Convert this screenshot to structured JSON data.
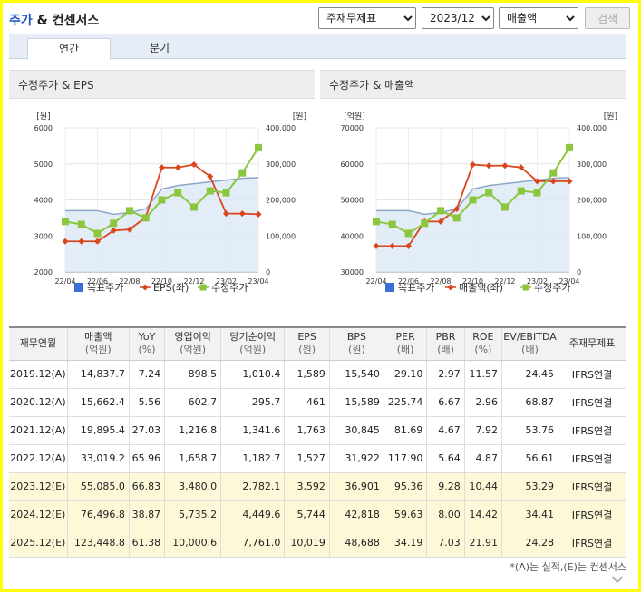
{
  "header": {
    "title_main": "주가",
    "title_rest": " & 컨센서스",
    "select_type": "주재무제표",
    "select_period": "2023/12",
    "select_metric": "매출액",
    "search_label": "검색"
  },
  "tabs": [
    {
      "label": "연간",
      "active": true
    },
    {
      "label": "분기",
      "active": false
    }
  ],
  "colors": {
    "target_price": "#3a6fd8",
    "line_primary": "#d9461c",
    "line_price": "#8cc63f"
  },
  "chart_data": [
    {
      "type": "line",
      "title": "수정주가 & EPS",
      "x": [
        "22/04",
        "22/05",
        "22/06",
        "22/07",
        "22/08",
        "22/09",
        "22/10",
        "22/11",
        "22/12",
        "23/01",
        "23/02",
        "23/03",
        "23/04"
      ],
      "x_ticks": [
        "22/04",
        "22/06",
        "22/08",
        "22/10",
        "22/12",
        "23/02",
        "23/04"
      ],
      "y_left": {
        "unit": "[원]",
        "ticks": [
          "6000",
          "5000",
          "4000",
          "3000",
          "2000"
        ],
        "min": 2000,
        "max": 6000
      },
      "y_right": {
        "unit": "[원]",
        "ticks": [
          "400,000",
          "300,000",
          "200,000",
          "100,000",
          "0"
        ],
        "min": 0,
        "max": 400000
      },
      "series": [
        {
          "name": "목표주가",
          "axis": "right",
          "kind": "area",
          "values": [
            170000,
            170000,
            170000,
            160000,
            165000,
            175000,
            230000,
            240000,
            245000,
            250000,
            255000,
            260000,
            262000
          ]
        },
        {
          "name": "EPS(좌)",
          "axis": "left",
          "kind": "line",
          "values": [
            2850,
            2850,
            2850,
            3150,
            3180,
            3520,
            4900,
            4900,
            4980,
            4650,
            3620,
            3620,
            3600
          ]
        },
        {
          "name": "수정주가",
          "axis": "right",
          "kind": "line",
          "values": [
            140000,
            132000,
            107000,
            135000,
            170000,
            150000,
            200000,
            220000,
            180000,
            225000,
            220000,
            275000,
            345000
          ]
        }
      ],
      "legend": [
        "목표주가",
        "EPS(좌)",
        "수정주가"
      ]
    },
    {
      "type": "line",
      "title": "수정주가 & 매출액",
      "x": [
        "22/04",
        "22/05",
        "22/06",
        "22/07",
        "22/08",
        "22/09",
        "22/10",
        "22/11",
        "22/12",
        "23/01",
        "23/02",
        "23/03",
        "23/04"
      ],
      "x_ticks": [
        "22/04",
        "22/06",
        "22/08",
        "22/10",
        "22/12",
        "23/02",
        "23/04"
      ],
      "y_left": {
        "unit": "[억원]",
        "ticks": [
          "70000",
          "60000",
          "50000",
          "40000",
          "30000"
        ],
        "min": 30000,
        "max": 70000
      },
      "y_right": {
        "unit": "[원]",
        "ticks": [
          "400,000",
          "300,000",
          "200,000",
          "100,000",
          "0"
        ],
        "min": 0,
        "max": 400000
      },
      "series": [
        {
          "name": "목표주가",
          "axis": "right",
          "kind": "area",
          "values": [
            170000,
            170000,
            170000,
            160000,
            165000,
            175000,
            230000,
            240000,
            245000,
            250000,
            255000,
            260000,
            262000
          ]
        },
        {
          "name": "매출액(좌)",
          "axis": "left",
          "kind": "line",
          "values": [
            37200,
            37200,
            37200,
            44000,
            44000,
            47500,
            59800,
            59500,
            59500,
            59000,
            55200,
            55200,
            55200
          ]
        },
        {
          "name": "수정주가",
          "axis": "right",
          "kind": "line",
          "values": [
            140000,
            132000,
            107000,
            135000,
            170000,
            150000,
            200000,
            220000,
            180000,
            225000,
            220000,
            275000,
            345000
          ]
        }
      ],
      "legend": [
        "목표주가",
        "매출액(좌)",
        "수정주가"
      ]
    }
  ],
  "table": {
    "headers": [
      {
        "label": "재무연월",
        "unit": ""
      },
      {
        "label": "매출액",
        "unit": "(억원)"
      },
      {
        "label": "YoY",
        "unit": "(%)"
      },
      {
        "label": "영업이익",
        "unit": "(억원)"
      },
      {
        "label": "당기순이익",
        "unit": "(억원)"
      },
      {
        "label": "EPS",
        "unit": "(원)"
      },
      {
        "label": "BPS",
        "unit": "(원)"
      },
      {
        "label": "PER",
        "unit": "(배)"
      },
      {
        "label": "PBR",
        "unit": "(배)"
      },
      {
        "label": "ROE",
        "unit": "(%)"
      },
      {
        "label": "EV/EBITDA",
        "unit": "(배)"
      },
      {
        "label": "주재무제표",
        "unit": ""
      }
    ],
    "rows": [
      {
        "est": false,
        "cells": [
          "2019.12(A)",
          "14,837.7",
          "7.24",
          "898.5",
          "1,010.4",
          "1,589",
          "15,540",
          "29.10",
          "2.97",
          "11.57",
          "24.45",
          "IFRS연결"
        ]
      },
      {
        "est": false,
        "cells": [
          "2020.12(A)",
          "15,662.4",
          "5.56",
          "602.7",
          "295.7",
          "461",
          "15,589",
          "225.74",
          "6.67",
          "2.96",
          "68.87",
          "IFRS연결"
        ]
      },
      {
        "est": false,
        "cells": [
          "2021.12(A)",
          "19,895.4",
          "27.03",
          "1,216.8",
          "1,341.6",
          "1,763",
          "30,845",
          "81.69",
          "4.67",
          "7.92",
          "53.76",
          "IFRS연결"
        ]
      },
      {
        "est": false,
        "cells": [
          "2022.12(A)",
          "33,019.2",
          "65.96",
          "1,658.7",
          "1,182.7",
          "1,527",
          "31,922",
          "117.90",
          "5.64",
          "4.87",
          "56.61",
          "IFRS연결"
        ]
      },
      {
        "est": true,
        "cells": [
          "2023.12(E)",
          "55,085.0",
          "66.83",
          "3,480.0",
          "2,782.1",
          "3,592",
          "36,901",
          "95.36",
          "9.28",
          "10.44",
          "53.29",
          "IFRS연결"
        ]
      },
      {
        "est": true,
        "cells": [
          "2024.12(E)",
          "76,496.8",
          "38.87",
          "5,735.2",
          "4,449.6",
          "5,744",
          "42,818",
          "59.63",
          "8.00",
          "14.42",
          "34.41",
          "IFRS연결"
        ]
      },
      {
        "est": true,
        "cells": [
          "2025.12(E)",
          "123,448.8",
          "61.38",
          "10,000.6",
          "7,761.0",
          "10,019",
          "48,688",
          "34.19",
          "7.03",
          "21.91",
          "24.28",
          "IFRS연결"
        ]
      }
    ]
  },
  "note": "*(A)는 실적,(E)는 컨센서스"
}
